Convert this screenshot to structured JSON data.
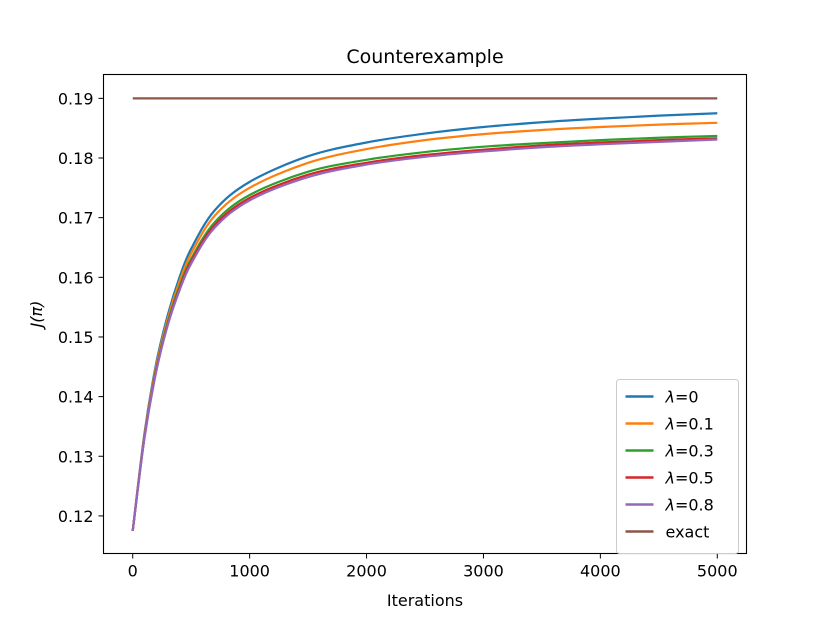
{
  "chart_data": {
    "type": "line",
    "title": "Counterexample",
    "xlabel": "Iterations",
    "ylabel": "J(π)",
    "xlim": [
      -250,
      5250
    ],
    "ylim": [
      0.1137,
      0.194
    ],
    "xticks": [
      0,
      1000,
      2000,
      3000,
      4000,
      5000
    ],
    "xtick_labels": [
      "0",
      "1000",
      "2000",
      "3000",
      "4000",
      "5000"
    ],
    "yticks": [
      0.12,
      0.13,
      0.14,
      0.15,
      0.16,
      0.17,
      0.18,
      0.19
    ],
    "ytick_labels": [
      "0.12",
      "0.13",
      "0.14",
      "0.15",
      "0.16",
      "0.17",
      "0.18",
      "0.19"
    ],
    "grid": false,
    "legend_position": "lower-right",
    "series": [
      {
        "name": "λ=0",
        "lambda": "0",
        "color": "#1f77b4",
        "x": [
          0,
          100,
          200,
          300,
          400,
          500,
          700,
          1000,
          1500,
          2000,
          2500,
          3000,
          3500,
          4000,
          4500,
          5000
        ],
        "y": [
          0.1175,
          0.1338,
          0.1455,
          0.1537,
          0.16,
          0.1648,
          0.1712,
          0.176,
          0.1803,
          0.1826,
          0.1841,
          0.1852,
          0.186,
          0.1866,
          0.1871,
          0.1875
        ]
      },
      {
        "name": "λ=0.1",
        "lambda": "0.1",
        "color": "#ff7f0e",
        "x": [
          0,
          100,
          200,
          300,
          400,
          500,
          700,
          1000,
          1500,
          2000,
          2500,
          3000,
          3500,
          4000,
          4500,
          5000
        ],
        "y": [
          0.1175,
          0.1335,
          0.145,
          0.1531,
          0.1593,
          0.164,
          0.1703,
          0.175,
          0.1792,
          0.1815,
          0.183,
          0.184,
          0.1847,
          0.1852,
          0.1856,
          0.1859
        ]
      },
      {
        "name": "λ=0.3",
        "lambda": "0.3",
        "color": "#2ca02c",
        "x": [
          0,
          100,
          200,
          300,
          400,
          500,
          700,
          1000,
          1500,
          2000,
          2500,
          3000,
          3500,
          4000,
          4500,
          5000
        ],
        "y": [
          0.1175,
          0.1332,
          0.1445,
          0.1525,
          0.1585,
          0.1631,
          0.1692,
          0.1738,
          0.1777,
          0.1797,
          0.181,
          0.1819,
          0.1825,
          0.183,
          0.1834,
          0.1837
        ]
      },
      {
        "name": "λ=0.5",
        "lambda": "0.5",
        "color": "#d62728",
        "x": [
          0,
          100,
          200,
          300,
          400,
          500,
          700,
          1000,
          1500,
          2000,
          2500,
          3000,
          3500,
          4000,
          4500,
          5000
        ],
        "y": [
          0.1175,
          0.1331,
          0.1443,
          0.1522,
          0.1581,
          0.1627,
          0.1687,
          0.1733,
          0.1772,
          0.1792,
          0.1805,
          0.1814,
          0.1821,
          0.1826,
          0.183,
          0.1833
        ]
      },
      {
        "name": "λ=0.8",
        "lambda": "0.8",
        "color": "#9467bd",
        "x": [
          0,
          100,
          200,
          300,
          400,
          500,
          700,
          1000,
          1500,
          2000,
          2500,
          3000,
          3500,
          4000,
          4500,
          5000
        ],
        "y": [
          0.1175,
          0.133,
          0.1441,
          0.152,
          0.1578,
          0.1623,
          0.1683,
          0.1729,
          0.1768,
          0.1789,
          0.1802,
          0.1811,
          0.1818,
          0.1823,
          0.1827,
          0.1831
        ]
      },
      {
        "name": "exact",
        "lambda": null,
        "color": "#8c564b",
        "x": [
          0,
          5000
        ],
        "y": [
          0.19,
          0.19
        ]
      }
    ]
  }
}
